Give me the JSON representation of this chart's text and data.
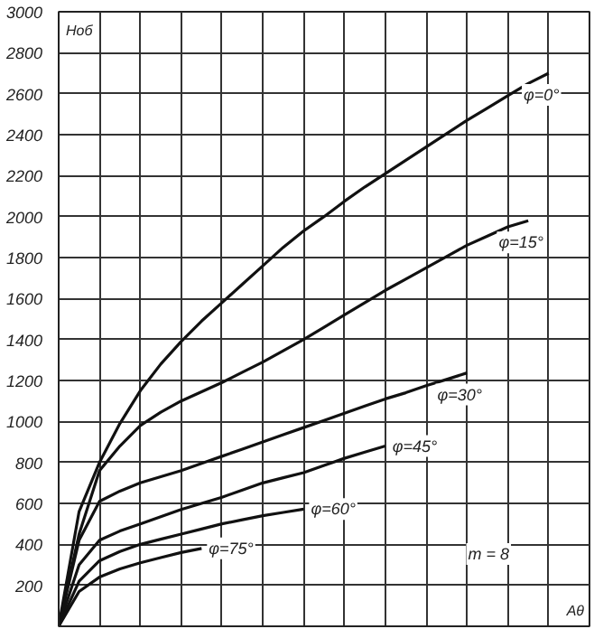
{
  "chart_data": {
    "type": "line",
    "ylabel": "Hоб",
    "xlabel": "Aθ",
    "annotations": [
      "m = 8"
    ],
    "categories": [
      null,
      null,
      null,
      null,
      null,
      null,
      null,
      null,
      null,
      null,
      null,
      null,
      null,
      null,
      null,
      null,
      null,
      null,
      null,
      null,
      null,
      null,
      null,
      null,
      null,
      null,
      null
    ],
    "ylim": [
      0,
      3000
    ],
    "yticks": [
      200,
      400,
      600,
      800,
      1000,
      1200,
      1400,
      1600,
      1800,
      2000,
      2200,
      2400,
      2600,
      2800,
      3000
    ],
    "grid": true,
    "marker": "none",
    "line_style": "solid",
    "series": [
      {
        "name": "φ=0°",
        "color": "#111111",
        "values": [
          0,
          560,
          800,
          990,
          1150,
          1280,
          1390,
          1490,
          1580,
          1670,
          1760,
          1850,
          1930,
          2000,
          2075,
          2145,
          2210,
          2275,
          2340,
          2405,
          2470,
          2530,
          2590,
          2650,
          2700,
          null,
          null
        ]
      },
      {
        "name": "φ=15°",
        "color": "#111111",
        "values": [
          0,
          450,
          760,
          880,
          980,
          1045,
          1100,
          1145,
          1190,
          1240,
          1290,
          1345,
          1400,
          1460,
          1520,
          1580,
          1640,
          1695,
          1750,
          1805,
          1860,
          1905,
          1950,
          1980,
          null,
          null,
          null
        ]
      },
      {
        "name": "φ=30°",
        "color": "#111111",
        "values": [
          0,
          420,
          610,
          660,
          700,
          730,
          760,
          795,
          830,
          865,
          900,
          935,
          970,
          1005,
          1040,
          1075,
          1110,
          1140,
          1175,
          1205,
          1237,
          null,
          null,
          null,
          null,
          null,
          null
        ]
      },
      {
        "name": "φ=45°",
        "color": "#111111",
        "values": [
          0,
          300,
          420,
          465,
          500,
          535,
          570,
          600,
          630,
          665,
          700,
          725,
          750,
          785,
          820,
          850,
          880,
          null,
          null,
          null,
          null,
          null,
          null,
          null,
          null,
          null,
          null
        ]
      },
      {
        "name": "φ=60°",
        "color": "#111111",
        "values": [
          0,
          220,
          320,
          365,
          400,
          425,
          450,
          475,
          500,
          520,
          540,
          556,
          572,
          null,
          null,
          null,
          null,
          null,
          null,
          null,
          null,
          null,
          null,
          null,
          null,
          null,
          null
        ]
      },
      {
        "name": "φ=75°",
        "color": "#111111",
        "values": [
          0,
          170,
          240,
          280,
          310,
          335,
          360,
          380,
          null,
          null,
          null,
          null,
          null,
          null,
          null,
          null,
          null,
          null,
          null,
          null,
          null,
          null,
          null,
          null,
          null,
          null,
          null
        ]
      }
    ]
  }
}
